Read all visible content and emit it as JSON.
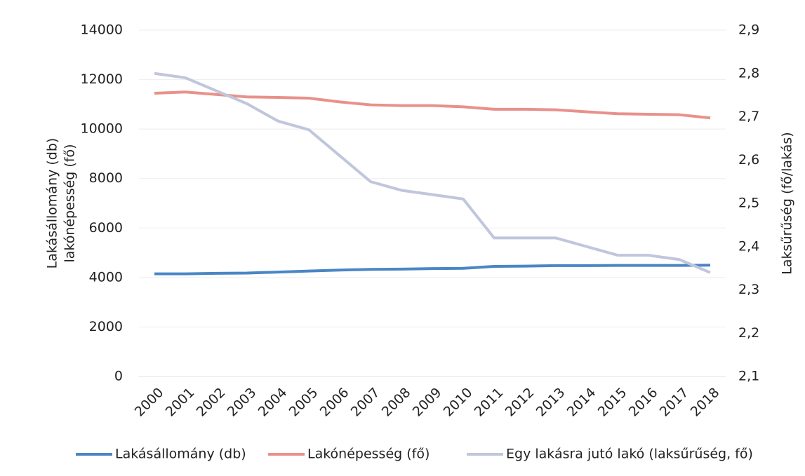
{
  "chart_data": {
    "type": "line",
    "ylabel": [
      "Lakásállomány (db)",
      "lakónépesség (fő)"
    ],
    "y2label": "Laksűrűség (fő/lakás)",
    "categories": [
      "2000",
      "2001",
      "2002",
      "2003",
      "2004",
      "2005",
      "2006",
      "2007",
      "2008",
      "2009",
      "2010",
      "2011",
      "2012",
      "2013",
      "2014",
      "2015",
      "2016",
      "2017",
      "2018"
    ],
    "series": [
      {
        "name": "Lakásállomány (db)",
        "color": "#4a86c5",
        "values": [
          4150,
          4150,
          4170,
          4180,
          4220,
          4260,
          4300,
          4330,
          4340,
          4360,
          4370,
          4450,
          4460,
          4480,
          4480,
          4490,
          4490,
          4490,
          4500
        ]
      },
      {
        "name": "Lakónépesség (fő)",
        "color": "#e8918a",
        "values": [
          11450,
          11500,
          11400,
          11300,
          11280,
          11250,
          11100,
          10980,
          10950,
          10950,
          10900,
          10800,
          10800,
          10780,
          10700,
          10620,
          10600,
          10580,
          10450
        ]
      },
      {
        "name": "Egy lakásra jutó lakó (laksűrűség, fő)",
        "color": "#c0c6dc",
        "axis": "y2",
        "values": [
          2.8,
          2.79,
          2.76,
          2.73,
          2.69,
          2.67,
          2.61,
          2.55,
          2.53,
          2.52,
          2.51,
          2.42,
          2.42,
          2.42,
          2.4,
          2.38,
          2.38,
          2.37,
          2.34
        ]
      }
    ],
    "ylim": [
      0,
      14000
    ],
    "yticks": [
      0,
      2000,
      4000,
      6000,
      8000,
      10000,
      12000,
      14000
    ],
    "y2lim": [
      2.1,
      2.9
    ],
    "y2ticks": [
      {
        "value": 2.1,
        "label": "2,1"
      },
      {
        "value": 2.2,
        "label": "2,2"
      },
      {
        "value": 2.3,
        "label": "2,3"
      },
      {
        "value": 2.4,
        "label": "2,4"
      },
      {
        "value": 2.5,
        "label": "2,5"
      },
      {
        "value": 2.6,
        "label": "2,6"
      },
      {
        "value": 2.7,
        "label": "2,7"
      },
      {
        "value": 2.8,
        "label": "2,8"
      },
      {
        "value": 2.9,
        "label": "2,9"
      }
    ],
    "grid": true,
    "legend": "bottom"
  }
}
